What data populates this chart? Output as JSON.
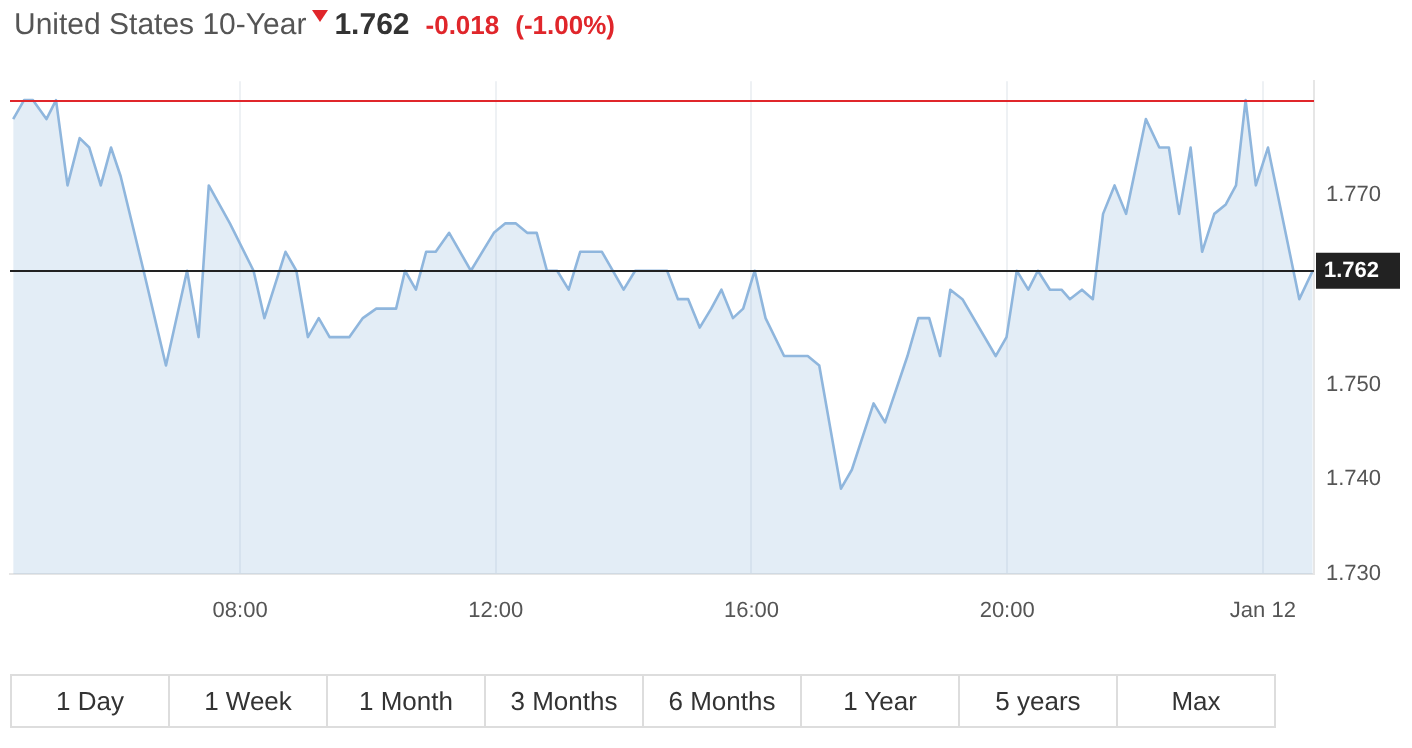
{
  "chart_data": {
    "type": "area",
    "title": "United States 10-Year",
    "annotations": [
      "1.762",
      "-0.018",
      "(-1.00%)",
      "1 Day",
      "1 Week",
      "1 Month",
      "3 Months",
      "6 Months",
      "1 Year",
      "5 years",
      "Max"
    ],
    "x": [
      4.45,
      4.62,
      4.76,
      4.97,
      5.12,
      5.3,
      5.49,
      5.64,
      5.82,
      5.98,
      6.13,
      6.49,
      6.84,
      7.17,
      7.35,
      7.51,
      7.84,
      8.21,
      8.38,
      8.71,
      8.88,
      9.06,
      9.23,
      9.4,
      9.71,
      9.92,
      10.13,
      10.44,
      10.58,
      10.75,
      10.91,
      11.06,
      11.27,
      11.61,
      11.97,
      12.15,
      12.31,
      12.49,
      12.64,
      12.8,
      12.96,
      13.14,
      13.32,
      13.66,
      14.0,
      14.18,
      14.68,
      14.85,
      15.01,
      15.19,
      15.37,
      15.53,
      15.71,
      15.87,
      16.05,
      16.22,
      16.51,
      16.88,
      17.06,
      17.4,
      17.57,
      17.91,
      18.09,
      18.44,
      18.61,
      18.78,
      18.95,
      19.11,
      19.3,
      19.82,
      19.99,
      20.15,
      20.33,
      20.48,
      20.67,
      20.85,
      20.98,
      21.17,
      21.34,
      21.5,
      21.68,
      21.86,
      22.17,
      22.38,
      22.53,
      22.69,
      22.87,
      23.05,
      23.24,
      23.42,
      23.58,
      23.73,
      23.89,
      24.08,
      24.57,
      24.78
    ],
    "series": [
      {
        "color": "#8fb6dd",
        "values": [
          1.778,
          1.78,
          1.78,
          1.778,
          1.78,
          1.771,
          1.776,
          1.775,
          1.771,
          1.775,
          1.772,
          1.762,
          1.752,
          1.762,
          1.755,
          1.771,
          1.767,
          1.762,
          1.757,
          1.764,
          1.762,
          1.755,
          1.757,
          1.755,
          1.755,
          1.757,
          1.758,
          1.758,
          1.762,
          1.76,
          1.764,
          1.764,
          1.766,
          1.762,
          1.766,
          1.767,
          1.767,
          1.766,
          1.766,
          1.762,
          1.762,
          1.76,
          1.764,
          1.764,
          1.76,
          1.762,
          1.762,
          1.759,
          1.759,
          1.756,
          1.758,
          1.76,
          1.757,
          1.758,
          1.762,
          1.757,
          1.753,
          1.753,
          1.752,
          1.739,
          1.741,
          1.748,
          1.746,
          1.753,
          1.757,
          1.757,
          1.753,
          1.76,
          1.759,
          1.753,
          1.755,
          1.762,
          1.76,
          1.762,
          1.76,
          1.76,
          1.759,
          1.76,
          1.759,
          1.768,
          1.771,
          1.768,
          1.778,
          1.775,
          1.775,
          1.768,
          1.775,
          1.764,
          1.768,
          1.769,
          1.771,
          1.78,
          1.771,
          1.775,
          1.759,
          1.762
        ]
      }
    ],
    "xlim": [
      4.4,
      24.8
    ],
    "xticks": [
      {
        "value": 8,
        "label": "08:00"
      },
      {
        "value": 12,
        "label": "12:00"
      },
      {
        "value": 16,
        "label": "16:00"
      },
      {
        "value": 20,
        "label": "20:00"
      },
      {
        "value": 24,
        "label": "Jan 12"
      }
    ],
    "ylim": [
      1.73,
      1.782
    ],
    "yticks": [
      {
        "value": 1.73,
        "label": "1.730"
      },
      {
        "value": 1.74,
        "label": "1.740"
      },
      {
        "value": 1.75,
        "label": "1.750"
      },
      {
        "value": 1.77,
        "label": "1.770"
      }
    ],
    "grid": "x",
    "marker": "none",
    "ref_lines": [
      {
        "axis": "y",
        "value": 1.78,
        "color": "#e0262b"
      },
      {
        "axis": "y",
        "value": 1.762,
        "label": "1.762",
        "color": "#222222"
      }
    ]
  }
}
